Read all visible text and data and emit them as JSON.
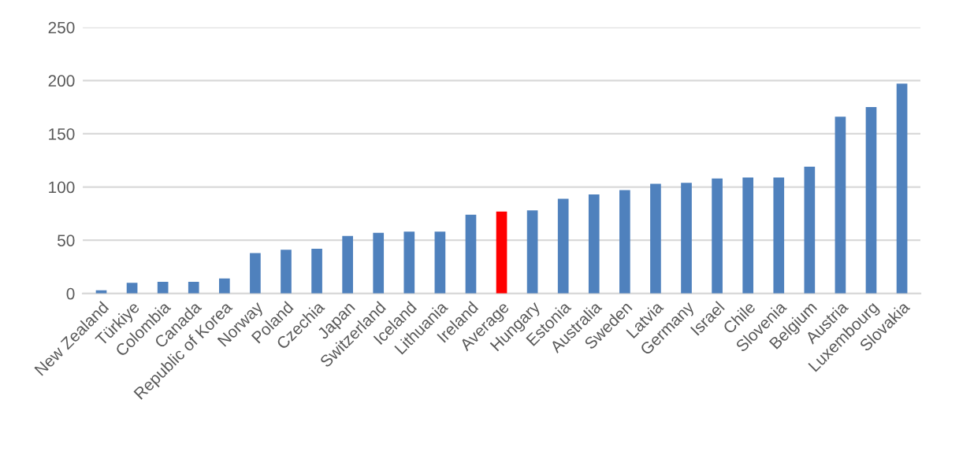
{
  "chart_data": {
    "type": "bar",
    "categories": [
      "New Zealand",
      "Türkiye",
      "Colombia",
      "Canada",
      "Republic of Korea",
      "Norway",
      "Poland",
      "Czechia",
      "Japan",
      "Switzerland",
      "Iceland",
      "Lithuania",
      "Ireland",
      "Average",
      "Hungary",
      "Estonia",
      "Australia",
      "Sweden",
      "Latvia",
      "Germany",
      "Israel",
      "Chile",
      "Slovenia",
      "Belgium",
      "Austria",
      "Luxembourg",
      "Slovakia"
    ],
    "values": [
      3,
      10,
      11,
      11,
      14,
      38,
      41,
      42,
      54,
      57,
      58,
      58,
      74,
      77,
      78,
      89,
      93,
      97,
      103,
      104,
      108,
      109,
      109,
      119,
      166,
      175,
      197
    ],
    "colors": [
      "#4f81bd",
      "#4f81bd",
      "#4f81bd",
      "#4f81bd",
      "#4f81bd",
      "#4f81bd",
      "#4f81bd",
      "#4f81bd",
      "#4f81bd",
      "#4f81bd",
      "#4f81bd",
      "#4f81bd",
      "#4f81bd",
      "#ff0000",
      "#4f81bd",
      "#4f81bd",
      "#4f81bd",
      "#4f81bd",
      "#4f81bd",
      "#4f81bd",
      "#4f81bd",
      "#4f81bd",
      "#4f81bd",
      "#4f81bd",
      "#4f81bd",
      "#4f81bd",
      "#4f81bd"
    ],
    "ylim": [
      0,
      250
    ],
    "yticks": [
      0,
      50,
      100,
      150,
      200,
      250
    ],
    "grid": "y",
    "legend": false
  }
}
